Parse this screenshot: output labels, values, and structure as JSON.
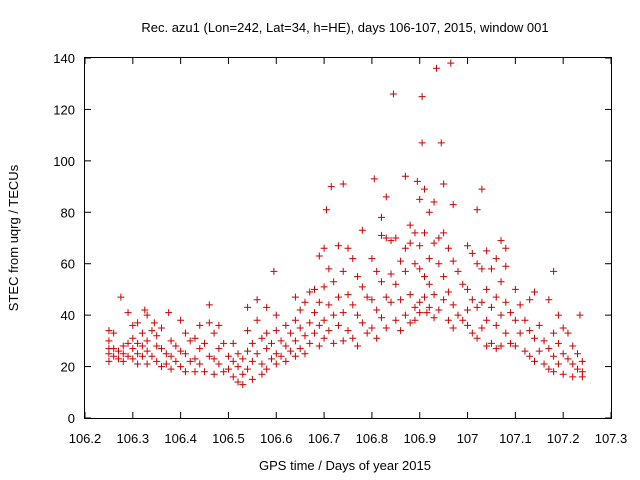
{
  "chart_data": {
    "type": "scatter",
    "title": "Rec. azu1 (Lon=242, Lat=34, h=HE), days 106-107, 2015, window 001",
    "xlabel": "GPS time / Days of year 2015",
    "ylabel": "STEC from uqrg / TECUs",
    "xlim": [
      106.2,
      107.3
    ],
    "ylim": [
      0,
      140
    ],
    "xticks": [
      "106.2",
      "106.3",
      "106.4",
      "106.5",
      "106.6",
      "106.7",
      "106.8",
      "106.9",
      "107",
      "107.1",
      "107.2",
      "107.3"
    ],
    "yticks": [
      "0",
      "20",
      "40",
      "60",
      "80",
      "100",
      "120",
      "140"
    ],
    "grid": false,
    "legend": "none",
    "marker": "+",
    "color": "#cc0000",
    "points": [
      [
        106.25,
        34
      ],
      [
        106.25,
        30
      ],
      [
        106.25,
        27
      ],
      [
        106.25,
        25
      ],
      [
        106.25,
        22
      ],
      [
        106.26,
        33
      ],
      [
        106.26,
        27
      ],
      [
        106.26,
        24
      ],
      [
        106.27,
        26
      ],
      [
        106.27,
        23
      ],
      [
        106.275,
        47
      ],
      [
        106.28,
        28
      ],
      [
        106.28,
        25
      ],
      [
        106.28,
        22
      ],
      [
        106.29,
        41
      ],
      [
        106.29,
        29
      ],
      [
        106.29,
        24
      ],
      [
        106.3,
        36
      ],
      [
        106.3,
        31
      ],
      [
        106.3,
        27
      ],
      [
        106.3,
        23
      ],
      [
        106.31,
        37
      ],
      [
        106.31,
        29
      ],
      [
        106.31,
        25
      ],
      [
        106.31,
        21
      ],
      [
        106.32,
        33
      ],
      [
        106.32,
        28
      ],
      [
        106.32,
        24
      ],
      [
        106.325,
        42
      ],
      [
        106.33,
        40
      ],
      [
        106.33,
        30
      ],
      [
        106.33,
        26
      ],
      [
        106.33,
        21
      ],
      [
        106.34,
        34
      ],
      [
        106.34,
        24
      ],
      [
        106.345,
        37
      ],
      [
        106.35,
        32
      ],
      [
        106.35,
        28
      ],
      [
        106.35,
        22
      ],
      [
        106.36,
        35
      ],
      [
        106.36,
        27
      ],
      [
        106.36,
        20
      ],
      [
        106.37,
        25
      ],
      [
        106.37,
        21
      ],
      [
        106.375,
        41
      ],
      [
        106.38,
        30
      ],
      [
        106.38,
        24
      ],
      [
        106.38,
        19
      ],
      [
        106.39,
        28
      ],
      [
        106.39,
        22
      ],
      [
        106.4,
        38
      ],
      [
        106.4,
        26
      ],
      [
        106.4,
        20
      ],
      [
        106.41,
        33
      ],
      [
        106.41,
        25
      ],
      [
        106.41,
        18
      ],
      [
        106.42,
        30
      ],
      [
        106.42,
        22
      ],
      [
        106.43,
        31
      ],
      [
        106.43,
        23
      ],
      [
        106.43,
        18
      ],
      [
        106.44,
        36
      ],
      [
        106.44,
        27
      ],
      [
        106.44,
        21
      ],
      [
        106.45,
        29
      ],
      [
        106.45,
        18
      ],
      [
        106.46,
        44
      ],
      [
        106.46,
        37
      ],
      [
        106.46,
        24
      ],
      [
        106.47,
        33
      ],
      [
        106.47,
        23
      ],
      [
        106.47,
        17
      ],
      [
        106.48,
        36
      ],
      [
        106.48,
        27
      ],
      [
        106.48,
        21
      ],
      [
        106.49,
        29
      ],
      [
        106.49,
        18
      ],
      [
        106.5,
        24
      ],
      [
        106.5,
        19
      ],
      [
        106.51,
        29
      ],
      [
        106.51,
        22
      ],
      [
        106.51,
        16
      ],
      [
        106.52,
        25
      ],
      [
        106.52,
        20
      ],
      [
        106.52,
        14
      ],
      [
        106.53,
        23
      ],
      [
        106.53,
        17
      ],
      [
        106.53,
        13
      ],
      [
        106.54,
        43
      ],
      [
        106.54,
        34
      ],
      [
        106.54,
        26
      ],
      [
        106.54,
        19
      ],
      [
        106.55,
        29
      ],
      [
        106.55,
        22
      ],
      [
        106.55,
        15
      ],
      [
        106.56,
        46
      ],
      [
        106.56,
        38
      ],
      [
        106.56,
        25
      ],
      [
        106.57,
        31
      ],
      [
        106.57,
        21
      ],
      [
        106.57,
        17
      ],
      [
        106.58,
        43
      ],
      [
        106.58,
        33
      ],
      [
        106.58,
        27
      ],
      [
        106.58,
        19
      ],
      [
        106.59,
        29
      ],
      [
        106.59,
        23
      ],
      [
        106.595,
        57
      ],
      [
        106.6,
        40
      ],
      [
        106.6,
        34
      ],
      [
        106.6,
        25
      ],
      [
        106.6,
        21
      ],
      [
        106.61,
        30
      ],
      [
        106.61,
        24
      ],
      [
        106.62,
        36
      ],
      [
        106.62,
        28
      ],
      [
        106.62,
        22
      ],
      [
        106.63,
        33
      ],
      [
        106.63,
        26
      ],
      [
        106.64,
        47
      ],
      [
        106.64,
        38
      ],
      [
        106.64,
        30
      ],
      [
        106.64,
        24
      ],
      [
        106.65,
        42
      ],
      [
        106.65,
        35
      ],
      [
        106.65,
        27
      ],
      [
        106.66,
        45
      ],
      [
        106.66,
        32
      ],
      [
        106.66,
        25
      ],
      [
        106.67,
        49
      ],
      [
        106.67,
        37
      ],
      [
        106.67,
        29
      ],
      [
        106.68,
        50
      ],
      [
        106.68,
        41
      ],
      [
        106.68,
        33
      ],
      [
        106.69,
        63
      ],
      [
        106.69,
        45
      ],
      [
        106.69,
        36
      ],
      [
        106.69,
        28
      ],
      [
        106.7,
        66
      ],
      [
        106.7,
        51
      ],
      [
        106.7,
        38
      ],
      [
        106.7,
        31
      ],
      [
        106.705,
        81
      ],
      [
        106.71,
        58
      ],
      [
        106.71,
        44
      ],
      [
        106.71,
        34
      ],
      [
        106.715,
        90
      ],
      [
        106.72,
        53
      ],
      [
        106.72,
        40
      ],
      [
        106.72,
        29
      ],
      [
        106.73,
        67
      ],
      [
        106.73,
        47
      ],
      [
        106.73,
        36
      ],
      [
        106.74,
        91
      ],
      [
        106.74,
        57
      ],
      [
        106.74,
        41
      ],
      [
        106.74,
        30
      ],
      [
        106.75,
        66
      ],
      [
        106.75,
        48
      ],
      [
        106.75,
        34
      ],
      [
        106.76,
        62
      ],
      [
        106.76,
        44
      ],
      [
        106.76,
        31
      ],
      [
        106.77,
        55
      ],
      [
        106.77,
        40
      ],
      [
        106.77,
        28
      ],
      [
        106.78,
        73
      ],
      [
        106.78,
        51
      ],
      [
        106.78,
        37
      ],
      [
        106.79,
        47
      ],
      [
        106.79,
        33
      ],
      [
        106.8,
        62
      ],
      [
        106.8,
        46
      ],
      [
        106.8,
        35
      ],
      [
        106.805,
        93
      ],
      [
        106.81,
        57
      ],
      [
        106.81,
        42
      ],
      [
        106.81,
        31
      ],
      [
        106.82,
        78
      ],
      [
        106.82,
        71
      ],
      [
        106.82,
        53
      ],
      [
        106.82,
        39
      ],
      [
        106.83,
        86
      ],
      [
        106.83,
        70
      ],
      [
        106.83,
        47
      ],
      [
        106.83,
        35
      ],
      [
        106.84,
        69
      ],
      [
        106.84,
        56
      ],
      [
        106.84,
        45
      ],
      [
        106.845,
        126
      ],
      [
        106.85,
        70
      ],
      [
        106.85,
        52
      ],
      [
        106.85,
        38
      ],
      [
        106.86,
        61
      ],
      [
        106.86,
        46
      ],
      [
        106.86,
        34
      ],
      [
        106.87,
        94
      ],
      [
        106.87,
        66
      ],
      [
        106.87,
        57
      ],
      [
        106.87,
        40
      ],
      [
        106.88,
        75
      ],
      [
        106.88,
        68
      ],
      [
        106.88,
        48
      ],
      [
        106.88,
        37
      ],
      [
        106.89,
        72
      ],
      [
        106.89,
        60
      ],
      [
        106.89,
        43
      ],
      [
        106.89,
        38
      ],
      [
        106.895,
        92
      ],
      [
        106.9,
        85
      ],
      [
        106.9,
        67
      ],
      [
        106.9,
        58
      ],
      [
        106.9,
        45
      ],
      [
        106.9,
        41
      ],
      [
        106.905,
        107
      ],
      [
        106.905,
        125
      ],
      [
        106.91,
        89
      ],
      [
        106.91,
        72
      ],
      [
        106.91,
        55
      ],
      [
        106.91,
        47
      ],
      [
        106.915,
        41
      ],
      [
        106.92,
        80
      ],
      [
        106.92,
        62
      ],
      [
        106.92,
        52
      ],
      [
        106.92,
        43
      ],
      [
        106.93,
        84
      ],
      [
        106.93,
        68
      ],
      [
        106.93,
        48
      ],
      [
        106.93,
        39
      ],
      [
        106.935,
        136
      ],
      [
        106.94,
        70
      ],
      [
        106.94,
        60
      ],
      [
        106.94,
        42
      ],
      [
        106.945,
        107
      ],
      [
        106.95,
        91
      ],
      [
        106.95,
        72
      ],
      [
        106.95,
        55
      ],
      [
        106.95,
        46
      ],
      [
        106.96,
        66
      ],
      [
        106.96,
        49
      ],
      [
        106.96,
        38
      ],
      [
        106.965,
        138
      ],
      [
        106.97,
        83
      ],
      [
        106.97,
        61
      ],
      [
        106.97,
        44
      ],
      [
        106.97,
        35
      ],
      [
        106.98,
        57
      ],
      [
        106.98,
        40
      ],
      [
        106.99,
        52
      ],
      [
        106.99,
        38
      ],
      [
        107,
        67
      ],
      [
        107,
        50
      ],
      [
        107,
        42
      ],
      [
        107,
        36
      ],
      [
        107.01,
        64
      ],
      [
        107.01,
        46
      ],
      [
        107.01,
        33
      ],
      [
        107.02,
        81
      ],
      [
        107.02,
        60
      ],
      [
        107.02,
        43
      ],
      [
        107.02,
        31
      ],
      [
        107.03,
        89
      ],
      [
        107.03,
        58
      ],
      [
        107.03,
        45
      ],
      [
        107.03,
        35
      ],
      [
        107.04,
        65
      ],
      [
        107.04,
        50
      ],
      [
        107.04,
        38
      ],
      [
        107.04,
        28
      ],
      [
        107.05,
        58
      ],
      [
        107.05,
        43
      ],
      [
        107.05,
        29
      ],
      [
        107.06,
        62
      ],
      [
        107.06,
        47
      ],
      [
        107.06,
        36
      ],
      [
        107.06,
        27
      ],
      [
        107.07,
        69
      ],
      [
        107.07,
        53
      ],
      [
        107.07,
        40
      ],
      [
        107.07,
        28
      ],
      [
        107.08,
        66
      ],
      [
        107.08,
        59
      ],
      [
        107.08,
        45
      ],
      [
        107.08,
        33
      ],
      [
        107.09,
        41
      ],
      [
        107.09,
        29
      ],
      [
        107.1,
        50
      ],
      [
        107.1,
        38
      ],
      [
        107.1,
        28
      ],
      [
        107.11,
        44
      ],
      [
        107.11,
        33
      ],
      [
        107.12,
        38
      ],
      [
        107.12,
        26
      ],
      [
        107.13,
        46
      ],
      [
        107.13,
        34
      ],
      [
        107.13,
        24
      ],
      [
        107.14,
        49
      ],
      [
        107.14,
        31
      ],
      [
        107.14,
        22
      ],
      [
        107.15,
        36
      ],
      [
        107.15,
        26
      ],
      [
        107.16,
        30
      ],
      [
        107.16,
        21
      ],
      [
        107.17,
        46
      ],
      [
        107.17,
        27
      ],
      [
        107.17,
        19
      ],
      [
        107.18,
        57
      ],
      [
        107.18,
        33
      ],
      [
        107.18,
        24
      ],
      [
        107.18,
        18
      ],
      [
        107.19,
        40
      ],
      [
        107.19,
        29
      ],
      [
        107.19,
        21
      ],
      [
        107.2,
        35
      ],
      [
        107.2,
        25
      ],
      [
        107.2,
        17
      ],
      [
        107.21,
        33
      ],
      [
        107.21,
        23
      ],
      [
        107.22,
        28
      ],
      [
        107.22,
        21
      ],
      [
        107.22,
        16
      ],
      [
        107.23,
        25
      ],
      [
        107.23,
        19
      ],
      [
        107.235,
        40
      ],
      [
        107.24,
        22
      ],
      [
        107.24,
        18
      ],
      [
        107.24,
        16
      ]
    ]
  }
}
